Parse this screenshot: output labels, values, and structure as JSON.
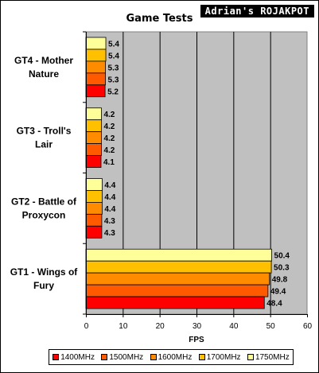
{
  "logo_text": "Adrian's ROJAKPOT",
  "chart_data": {
    "type": "bar",
    "orientation": "horizontal",
    "title": "Game Tests",
    "xlabel": "FPS",
    "xlim": [
      0,
      60
    ],
    "xticks": [
      "0",
      "10",
      "20",
      "30",
      "40",
      "50",
      "60"
    ],
    "categories": [
      "GT4 - Mother Nature",
      "GT3 - Troll's Lair",
      "GT2 - Battle of Proxycon",
      "GT1 - Wings of Fury"
    ],
    "category_lines": [
      [
        "GT4 - Mother",
        "Nature"
      ],
      [
        "GT3 - Troll's",
        "Lair"
      ],
      [
        "GT2 - Battle of",
        "Proxycon"
      ],
      [
        "GT1 - Wings of",
        "Fury"
      ]
    ],
    "series": [
      {
        "name": "1400MHz",
        "color": "#ff0000",
        "values": [
          5.2,
          4.1,
          4.3,
          48.4
        ]
      },
      {
        "name": "1500MHz",
        "color": "#ff5a00",
        "values": [
          5.3,
          4.2,
          4.3,
          49.4
        ]
      },
      {
        "name": "1600MHz",
        "color": "#ff8c00",
        "values": [
          5.3,
          4.2,
          4.4,
          49.8
        ]
      },
      {
        "name": "1700MHz",
        "color": "#ffc000",
        "values": [
          5.4,
          4.2,
          4.4,
          50.3
        ]
      },
      {
        "name": "1750MHz",
        "color": "#ffff99",
        "values": [
          5.4,
          4.2,
          4.4,
          50.4
        ]
      }
    ],
    "grid": true,
    "legend_position": "bottom",
    "plot_background": "#c0c0c0"
  }
}
